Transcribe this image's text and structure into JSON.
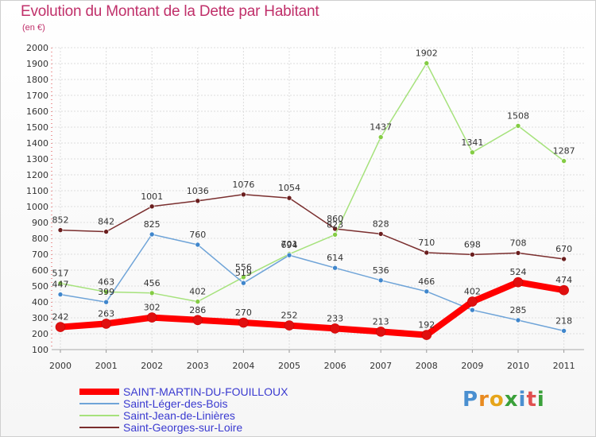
{
  "chart_data": {
    "type": "line",
    "title": "Evolution du Montant de la Dette par Habitant",
    "subtitle": "(en €)",
    "categories": [
      "2000",
      "2001",
      "2002",
      "2003",
      "2004",
      "2005",
      "2006",
      "2007",
      "2008",
      "2009",
      "2010",
      "2011"
    ],
    "ylim": [
      100,
      2000
    ],
    "yticks": [
      100,
      200,
      300,
      400,
      500,
      600,
      700,
      800,
      900,
      1000,
      1100,
      1200,
      1300,
      1400,
      1500,
      1600,
      1700,
      1800,
      1900,
      2000
    ],
    "grid": true,
    "legend_position": "bottom-left",
    "series": [
      {
        "name": "SAINT-MARTIN-DU-FOUILLOUX",
        "color": "#ff0000",
        "marker": "#e01010",
        "width": 8,
        "labels": true,
        "values": [
          242,
          263,
          302,
          286,
          270,
          252,
          233,
          213,
          192,
          402,
          524,
          474
        ]
      },
      {
        "name": "Saint-Léger-des-Bois",
        "color": "#6fa4d8",
        "marker": "#3f86cc",
        "width": 1.5,
        "labels": false,
        "values": [
          447,
          399,
          825,
          760,
          519,
          694,
          614,
          536,
          466,
          349,
          285,
          218
        ]
      },
      {
        "name": "Saint-Jean-de-Linières",
        "color": "#a6e27c",
        "marker": "#84cc44",
        "width": 1.5,
        "labels": false,
        "values": [
          517,
          463,
          456,
          402,
          556,
          701,
          823,
          1437,
          1902,
          1341,
          1508,
          1287
        ]
      },
      {
        "name": "Saint-Georges-sur-Loire",
        "color": "#7a2e2e",
        "marker": "#6a1e1e",
        "width": 1.5,
        "labels": false,
        "values": [
          852,
          842,
          1001,
          1036,
          1076,
          1054,
          860,
          828,
          710,
          698,
          708,
          670
        ]
      }
    ],
    "data_labels": [
      {
        "series": 0,
        "values": [
          "242",
          "263",
          "302",
          "286",
          "270",
          "252",
          "233",
          "213",
          "192",
          "402",
          "524",
          "474"
        ]
      },
      {
        "series": 1,
        "values": [
          "447",
          "399",
          "825",
          "760",
          "519",
          "694",
          "614",
          "536",
          "466",
          "",
          "285",
          "218"
        ]
      },
      {
        "series": 2,
        "values": [
          "517",
          "463",
          "456",
          "402",
          "556",
          "701",
          "823",
          "1437",
          "1902",
          "1341",
          "1508",
          "1287"
        ]
      },
      {
        "series": 3,
        "values": [
          "852",
          "842",
          "1001",
          "1036",
          "1076",
          "1054",
          "860",
          "828",
          "710",
          "698",
          "708",
          "670"
        ]
      }
    ]
  },
  "brand": {
    "logo_text": "Proxiti"
  }
}
